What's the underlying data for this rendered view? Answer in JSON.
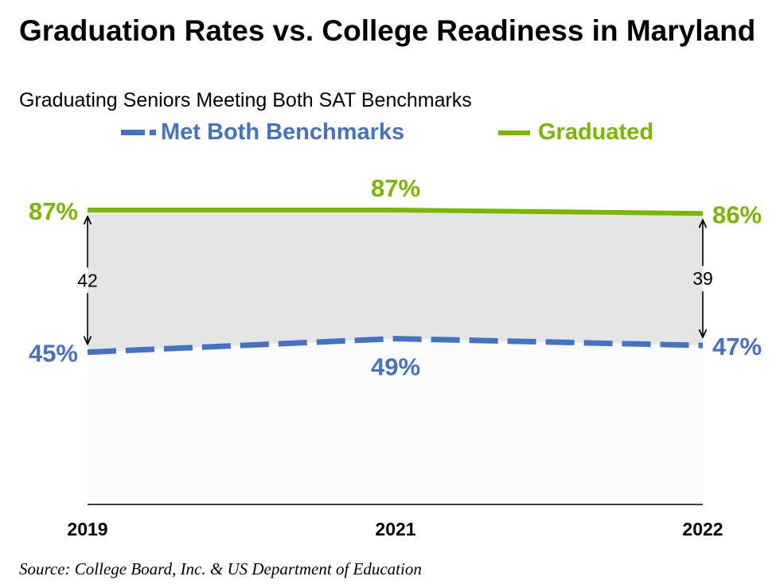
{
  "title": "Graduation Rates vs. College Readiness in Maryland",
  "subtitle": "Graduating Seniors Meeting Both SAT Benchmarks",
  "source": "Source: College Board, Inc. & US Department of Education",
  "legend": [
    {
      "label": "Met Both Benchmarks",
      "color": "#4472c4",
      "style": "dashed"
    },
    {
      "label": "Graduated",
      "color": "#7ab800",
      "style": "solid"
    }
  ],
  "chart_data": {
    "type": "line",
    "categories": [
      "2019",
      "2021",
      "2022"
    ],
    "ylim": [
      0,
      100
    ],
    "grid": false,
    "series": [
      {
        "name": "Graduated",
        "values": [
          87,
          87,
          86
        ],
        "labels": [
          "87%",
          "87%",
          "86%"
        ],
        "color": "#7ab800",
        "style": "solid"
      },
      {
        "name": "Met Both Benchmarks",
        "values": [
          45,
          49,
          47
        ],
        "labels": [
          "45%",
          "49%",
          "47%"
        ],
        "color": "#4472c4",
        "style": "dashed"
      }
    ],
    "gap_labels": [
      {
        "category": "2019",
        "text": "42"
      },
      {
        "category": "2022",
        "text": "39"
      }
    ],
    "gap_fill_color": "#e6e5e5"
  }
}
